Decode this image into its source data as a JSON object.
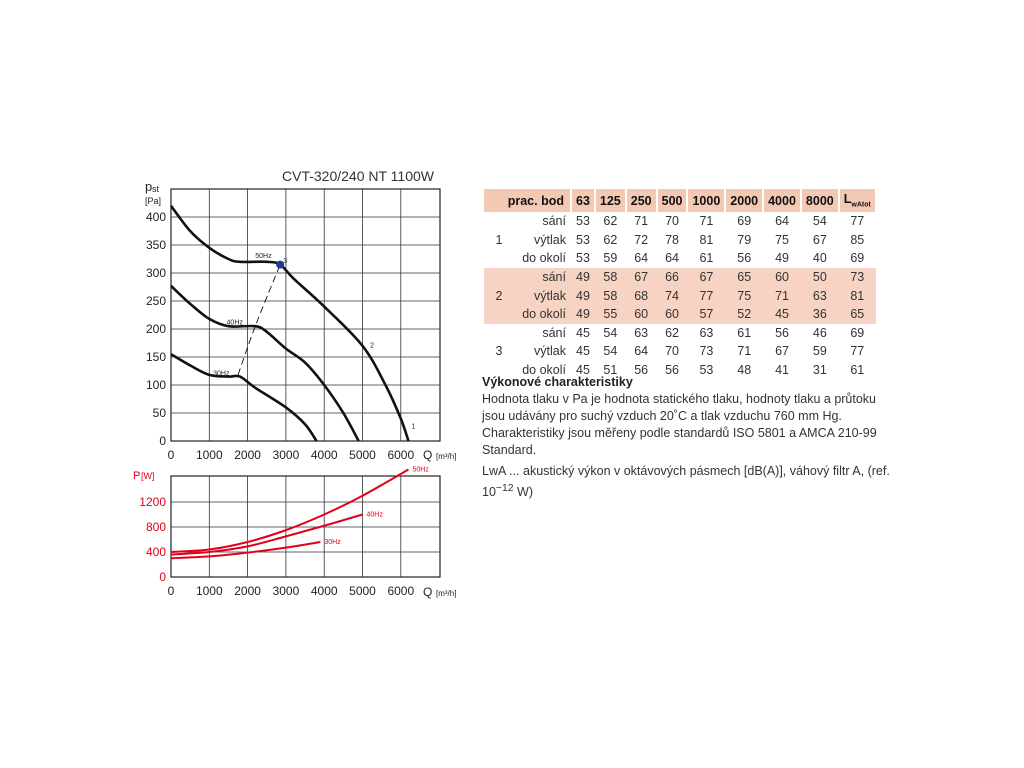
{
  "chart_data": [
    {
      "type": "line",
      "title": "CVT-320/240 NT 1100W",
      "ylabel_main": "p",
      "ylabel_sub": "st",
      "yunit": "[Pa]",
      "xlabel": "Q",
      "xunit": "[m³/h]",
      "xlim": [
        0,
        7000
      ],
      "ylim": [
        0,
        450
      ],
      "xticks": [
        "0",
        "1000",
        "2000",
        "3000",
        "4000",
        "5000",
        "6000"
      ],
      "yticks": [
        "0",
        "50",
        "100",
        "150",
        "200",
        "250",
        "300",
        "350",
        "400"
      ],
      "grid": true,
      "series": [
        {
          "name": "50Hz",
          "x": [
            0,
            500,
            1000,
            1500,
            1800,
            2500,
            2850,
            3200,
            4000,
            5000,
            5600,
            6000,
            6200
          ],
          "y": [
            420,
            375,
            345,
            325,
            320,
            320,
            315,
            290,
            240,
            170,
            100,
            40,
            0
          ]
        },
        {
          "name": "40Hz",
          "x": [
            0,
            500,
            1000,
            1500,
            2200,
            2500,
            3000,
            3500,
            4000,
            4500,
            4900
          ],
          "y": [
            277,
            245,
            218,
            205,
            205,
            195,
            165,
            140,
            100,
            50,
            0
          ]
        },
        {
          "name": "30Hz",
          "x": [
            0,
            500,
            1000,
            1500,
            1800,
            2200,
            3000,
            3500,
            3800
          ],
          "y": [
            155,
            135,
            118,
            115,
            115,
            95,
            60,
            30,
            0
          ]
        },
        {
          "name": "",
          "style": "dashed",
          "x": [
            1750,
            2200,
            2850
          ],
          "y": [
            118,
            205,
            315
          ]
        }
      ],
      "annotations": [
        {
          "text": "50Hz",
          "x": 2200,
          "y": 327
        },
        {
          "text": "40Hz",
          "x": 1450,
          "y": 208
        },
        {
          "text": "30Hz",
          "x": 1100,
          "y": 117
        },
        {
          "text": "3",
          "x": 2930,
          "y": 318
        },
        {
          "text": "2",
          "x": 5200,
          "y": 167
        },
        {
          "text": "1",
          "x": 6280,
          "y": 22
        }
      ],
      "marker": {
        "x": 2850,
        "y": 315,
        "color": "#1f3a93"
      }
    },
    {
      "type": "line",
      "ylabel": "P",
      "yunit": "[W]",
      "xlabel": "Q",
      "xunit": "[m³/h]",
      "xlim": [
        0,
        7000
      ],
      "ylim": [
        0,
        1600
      ],
      "xticks": [
        "0",
        "1000",
        "2000",
        "3000",
        "4000",
        "5000",
        "6000"
      ],
      "yticks": [
        "0",
        "400",
        "800",
        "1200"
      ],
      "grid": true,
      "color": "#e2001a",
      "series": [
        {
          "name": "50Hz",
          "x": [
            0,
            1000,
            2000,
            3000,
            4000,
            5000,
            6200
          ],
          "y": [
            400,
            440,
            560,
            750,
            1000,
            1300,
            1720
          ]
        },
        {
          "name": "40Hz",
          "x": [
            0,
            1000,
            2000,
            3000,
            4000,
            5000
          ],
          "y": [
            360,
            400,
            490,
            650,
            820,
            1000
          ]
        },
        {
          "name": "30Hz",
          "x": [
            0,
            1000,
            2000,
            3000,
            3900
          ],
          "y": [
            300,
            330,
            390,
            470,
            560
          ]
        }
      ]
    },
    {
      "type": "table",
      "columns": [
        "prac. bod",
        "63",
        "125",
        "250",
        "500",
        "1000",
        "2000",
        "4000",
        "8000",
        "L"
      ],
      "last_col_sub": "wAtot",
      "groups": [
        {
          "point": "1",
          "highlight": false,
          "rows": [
            {
              "label": "sání",
              "values": [
                "53",
                "62",
                "71",
                "70",
                "71",
                "69",
                "64",
                "54",
                "77"
              ]
            },
            {
              "label": "výtlak",
              "values": [
                "53",
                "62",
                "72",
                "78",
                "81",
                "79",
                "75",
                "67",
                "85"
              ]
            },
            {
              "label": "do okolí",
              "values": [
                "53",
                "59",
                "64",
                "64",
                "61",
                "56",
                "49",
                "40",
                "69"
              ]
            }
          ]
        },
        {
          "point": "2",
          "highlight": true,
          "rows": [
            {
              "label": "sání",
              "values": [
                "49",
                "58",
                "67",
                "66",
                "67",
                "65",
                "60",
                "50",
                "73"
              ]
            },
            {
              "label": "výtlak",
              "values": [
                "49",
                "58",
                "68",
                "74",
                "77",
                "75",
                "71",
                "63",
                "81"
              ]
            },
            {
              "label": "do okolí",
              "values": [
                "49",
                "55",
                "60",
                "60",
                "57",
                "52",
                "45",
                "36",
                "65"
              ]
            }
          ]
        },
        {
          "point": "3",
          "highlight": false,
          "rows": [
            {
              "label": "sání",
              "values": [
                "45",
                "54",
                "63",
                "62",
                "63",
                "61",
                "56",
                "46",
                "69"
              ]
            },
            {
              "label": "výtlak",
              "values": [
                "45",
                "54",
                "64",
                "70",
                "73",
                "71",
                "67",
                "59",
                "77"
              ]
            },
            {
              "label": "do okolí",
              "values": [
                "45",
                "51",
                "56",
                "56",
                "53",
                "48",
                "41",
                "31",
                "61"
              ]
            }
          ]
        }
      ]
    }
  ],
  "description": {
    "heading": "Výkonové charakteristiky",
    "p1": "Hodnota tlaku v Pa je hodnota statického tlaku, hodnoty tlaku a průtoku jsou udávány pro suchý vzduch 20˚C a tlak vzduchu 760 mm Hg. Charakteristiky jsou měřeny podle standardů ISO 5801 a AMCA 210-99 Standard.",
    "p2_main": "LwA ... akustický výkon v oktávových pásmech [dB(A)], váhový filtr A, (ref. 10",
    "p2_sup": "−12",
    "p2_end": " W)"
  }
}
